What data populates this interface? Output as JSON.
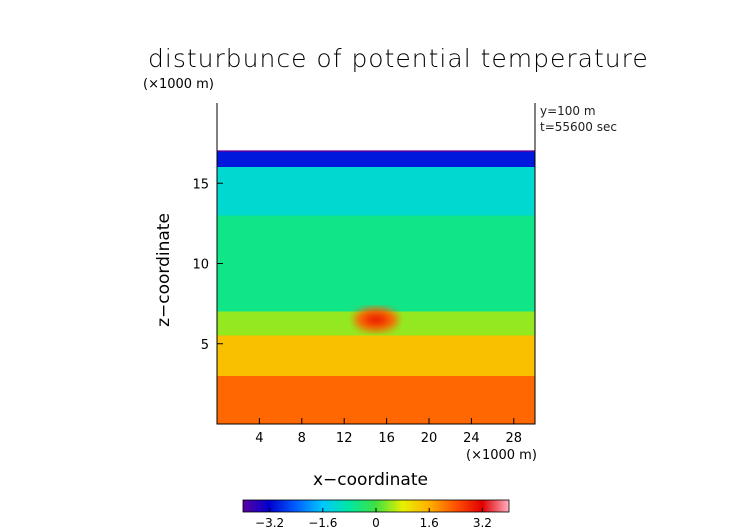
{
  "chart_data": {
    "type": "heatmap",
    "title": "disturbunce of potential temperature",
    "y_unit_label": "(×1000 m)",
    "x_unit_label": "(×1000 m)",
    "xlabel": "x−coordinate",
    "ylabel": "z−coordinate",
    "annotations": [
      "y=100 m",
      "t=55600 sec"
    ],
    "xlim": [
      0,
      30
    ],
    "ylim": [
      0,
      20
    ],
    "x_ticks": [
      4,
      8,
      12,
      16,
      20,
      24,
      28
    ],
    "y_ticks": [
      5,
      10,
      15
    ],
    "colorbar": {
      "range": [
        -4,
        4
      ],
      "ticks": [
        -3.2,
        -1.6,
        0,
        1.6,
        3.2
      ],
      "tick_labels": [
        "−3.2",
        "−1.6",
        "0",
        "1.6",
        "3.2"
      ],
      "colormap": [
        "#5a00a0",
        "#0000d0",
        "#0060ff",
        "#00c8ff",
        "#00e8a0",
        "#40e040",
        "#e8f000",
        "#ffb000",
        "#ff5000",
        "#e00000",
        "#ffb0c0"
      ]
    },
    "field_summary": {
      "data_top_z": 17,
      "above_top": "blank",
      "layers": [
        {
          "z_range": [
            16,
            17
          ],
          "value": -3.0
        },
        {
          "z_range": [
            13,
            16
          ],
          "value": -1.2
        },
        {
          "z_range": [
            7,
            13
          ],
          "value": -0.6
        },
        {
          "z_range": [
            5.5,
            7
          ],
          "value": 0.4
        },
        {
          "z_range": [
            3,
            5.5
          ],
          "value": 1.4
        },
        {
          "z_range": [
            0,
            3
          ],
          "value": 2.2
        }
      ],
      "hot_spot": {
        "x": 15,
        "z": 6.5,
        "value": 3.0
      }
    }
  }
}
